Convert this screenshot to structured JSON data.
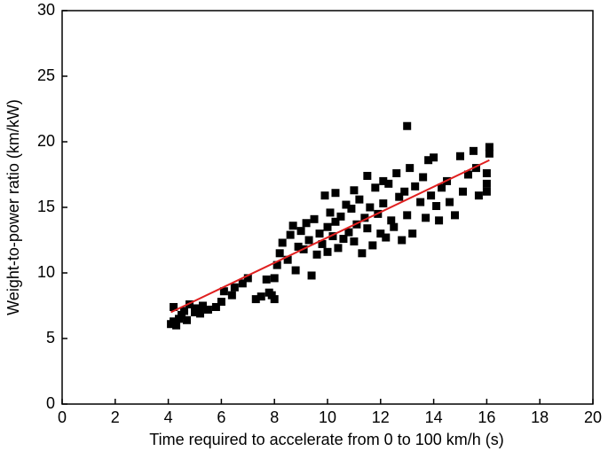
{
  "chart_data": {
    "type": "scatter",
    "xlabel": "Time required to accelerate from 0 to 100 km/h (s)",
    "ylabel": "Weight-to-power ratio (km/kW)",
    "xlim": [
      0,
      20
    ],
    "xticks": [
      0,
      2,
      4,
      6,
      8,
      10,
      12,
      14,
      16,
      18,
      20
    ],
    "ylim": [
      0,
      30
    ],
    "yticks": [
      0,
      5,
      10,
      15,
      20,
      25,
      30
    ],
    "series": [
      {
        "type": "scatter",
        "color": "#000000",
        "x": [
          4.1,
          4.2,
          4.3,
          4.4,
          4.2,
          4.5,
          4.6,
          4.7,
          4.8,
          5.0,
          5.1,
          5.2,
          5.3,
          5.5,
          5.8,
          6.0,
          6.1,
          6.4,
          6.5,
          6.8,
          7.0,
          7.3,
          7.5,
          7.7,
          7.8,
          7.9,
          8.0,
          8.0,
          8.1,
          8.2,
          8.3,
          8.5,
          8.6,
          8.7,
          8.8,
          8.9,
          9.0,
          9.1,
          9.2,
          9.3,
          9.4,
          9.5,
          9.6,
          9.7,
          9.8,
          9.9,
          10.0,
          10.0,
          10.1,
          10.2,
          10.3,
          10.3,
          10.4,
          10.5,
          10.6,
          10.7,
          10.8,
          10.9,
          11.0,
          11.0,
          11.1,
          11.2,
          11.3,
          11.4,
          11.5,
          11.5,
          11.6,
          11.7,
          11.8,
          11.9,
          12.0,
          12.1,
          12.1,
          12.2,
          12.3,
          12.4,
          12.5,
          12.6,
          12.7,
          12.8,
          12.9,
          13.0,
          13.0,
          13.1,
          13.2,
          13.3,
          13.5,
          13.6,
          13.7,
          13.8,
          13.9,
          14.0,
          14.1,
          14.2,
          14.3,
          14.5,
          14.6,
          14.8,
          15.0,
          15.1,
          15.3,
          15.5,
          15.6,
          15.7,
          16.0,
          16.0,
          16.0,
          16.1,
          16.1
        ],
        "values": [
          6.1,
          6.3,
          6.0,
          6.5,
          7.4,
          6.8,
          7.1,
          6.4,
          7.6,
          7.0,
          7.3,
          6.9,
          7.5,
          7.2,
          7.4,
          7.8,
          8.6,
          8.3,
          8.9,
          9.2,
          9.6,
          8.0,
          8.2,
          9.5,
          8.5,
          8.3,
          9.6,
          8.0,
          10.6,
          11.5,
          12.3,
          11.0,
          12.9,
          13.6,
          10.2,
          12.0,
          13.2,
          11.8,
          13.8,
          12.5,
          9.8,
          14.1,
          11.4,
          13.0,
          12.2,
          15.9,
          13.5,
          11.6,
          14.6,
          12.8,
          16.1,
          13.9,
          11.9,
          14.3,
          12.6,
          15.2,
          13.1,
          14.9,
          12.4,
          16.3,
          13.7,
          15.6,
          11.5,
          14.2,
          17.4,
          13.4,
          15.0,
          12.1,
          16.5,
          14.5,
          13.0,
          17.0,
          15.3,
          12.7,
          16.8,
          14.0,
          13.5,
          17.6,
          15.8,
          12.5,
          16.2,
          21.2,
          14.4,
          18.0,
          13.0,
          16.6,
          15.4,
          17.3,
          14.2,
          18.6,
          15.9,
          18.8,
          15.1,
          14.0,
          16.5,
          17.0,
          15.4,
          14.4,
          18.9,
          16.2,
          17.5,
          19.3,
          18.0,
          15.9,
          17.6,
          16.8,
          16.2,
          19.6,
          19.1
        ]
      },
      {
        "type": "line",
        "color": "#e02020",
        "x": [
          4.1,
          16.1
        ],
        "values": [
          7.0,
          18.6
        ]
      }
    ]
  }
}
